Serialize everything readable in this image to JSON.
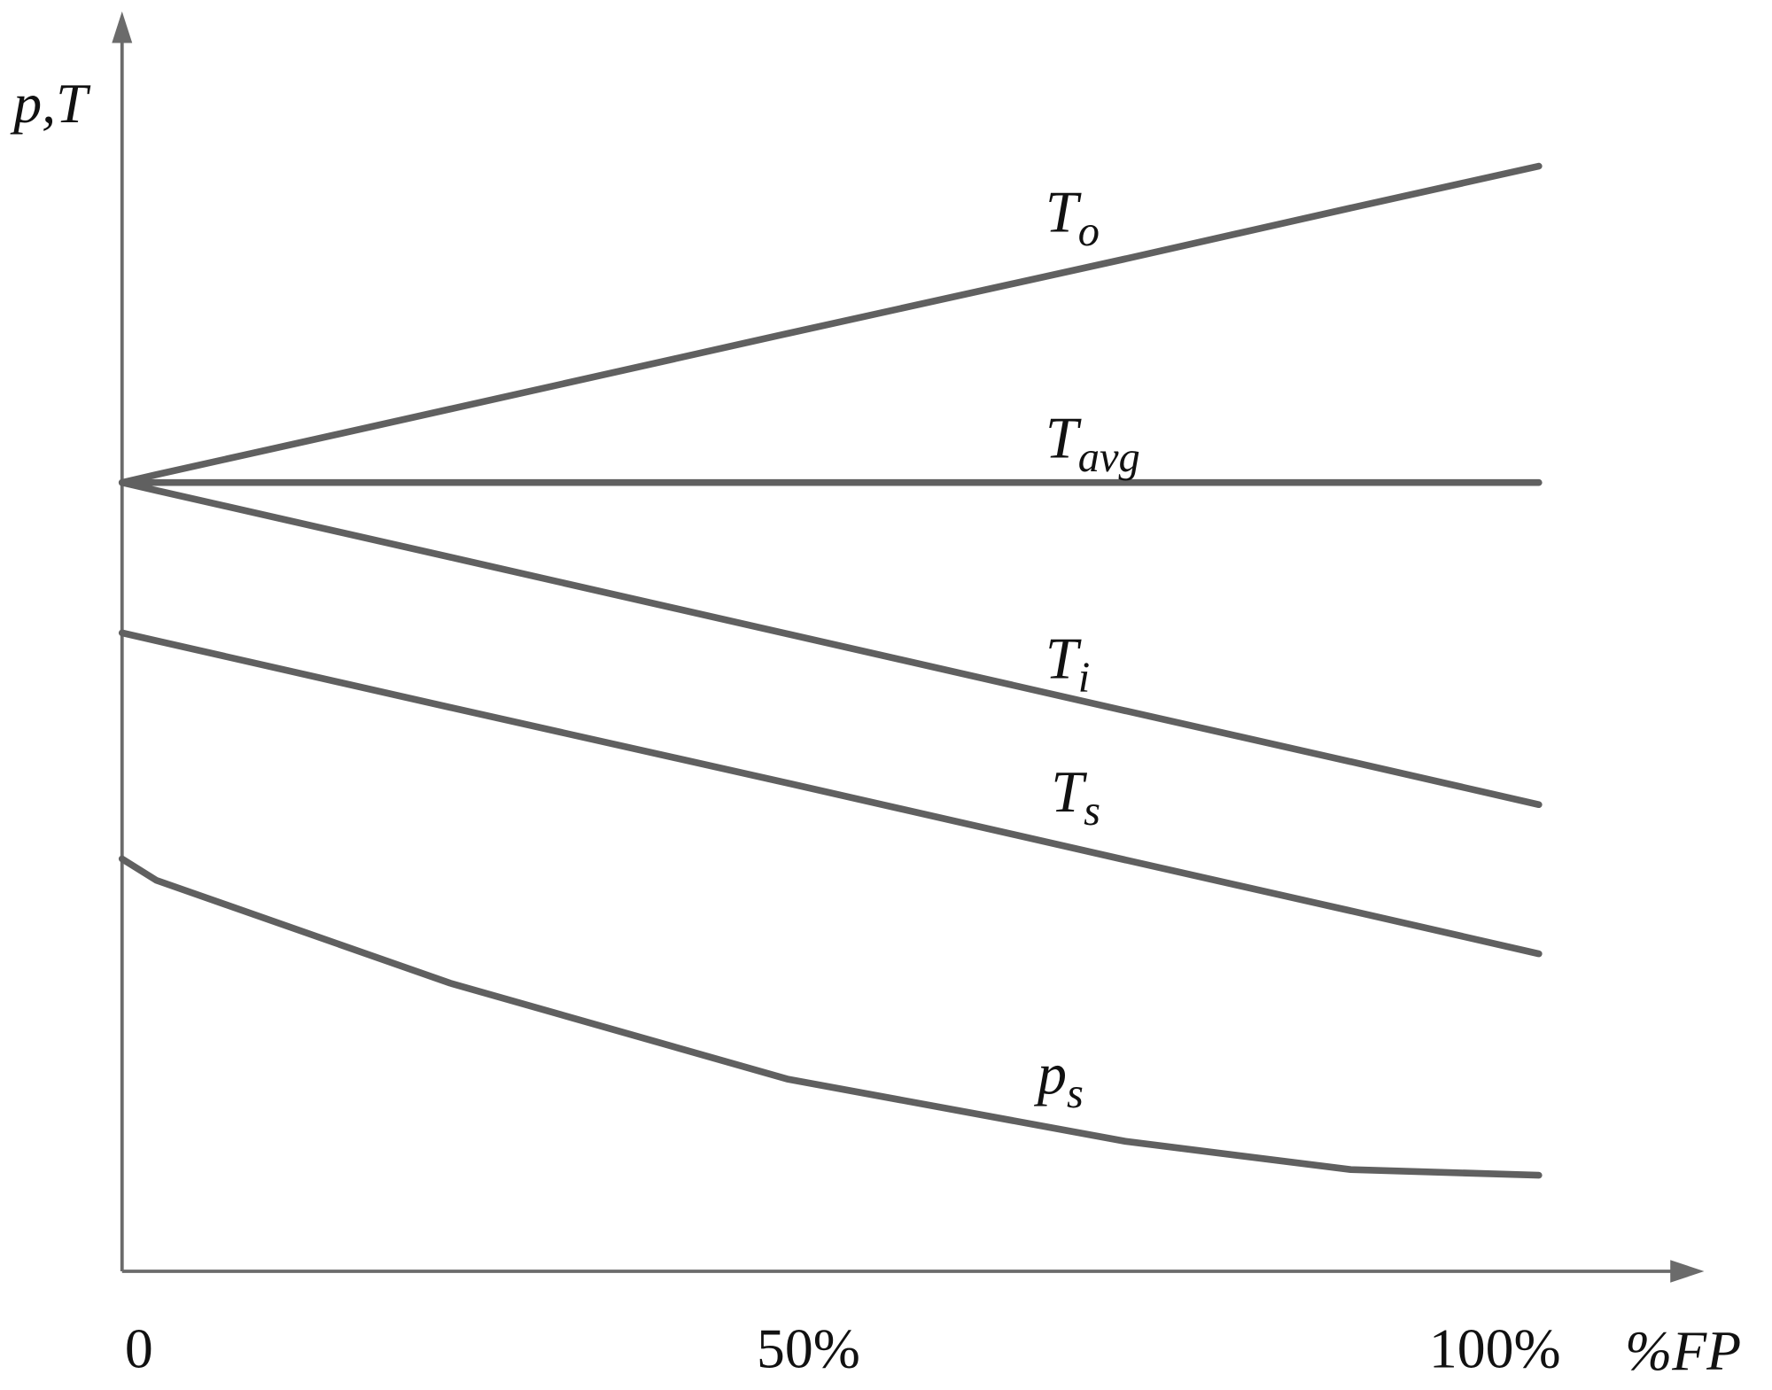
{
  "chart_data": {
    "type": "line",
    "xlabel": "%FP",
    "ylabel": "p,T",
    "x": [
      0,
      2.5,
      23.9,
      48.5,
      73.1,
      89.5,
      103.2
    ],
    "xlim": [
      0,
      115
    ],
    "ylim": [
      0,
      111
    ],
    "xticks": [
      0,
      {
        "value": 50,
        "label": "50%"
      },
      {
        "value": 100,
        "label": "100%"
      }
    ],
    "series": [
      {
        "name": "To",
        "color": "#606060",
        "values": [
          69.8,
          70.5,
          76.3,
          83.0,
          89.6,
          94.1,
          97.8
        ]
      },
      {
        "name": "Tavg",
        "color": "#606060",
        "values": [
          69.8,
          69.8,
          69.8,
          69.8,
          69.8,
          69.8,
          69.8
        ]
      },
      {
        "name": "Ti",
        "color": "#606060",
        "values": [
          69.8,
          69.1,
          63.2,
          56.4,
          49.6,
          45.1,
          41.3
        ]
      },
      {
        "name": "Ts",
        "color": "#606060",
        "values": [
          56.5,
          55.8,
          49.9,
          43.2,
          36.4,
          31.9,
          28.1
        ]
      },
      {
        "name": "ps",
        "color": "#606060",
        "values": [
          36.5,
          34.6,
          25.5,
          17.0,
          11.5,
          9.0,
          8.5
        ]
      }
    ]
  }
}
